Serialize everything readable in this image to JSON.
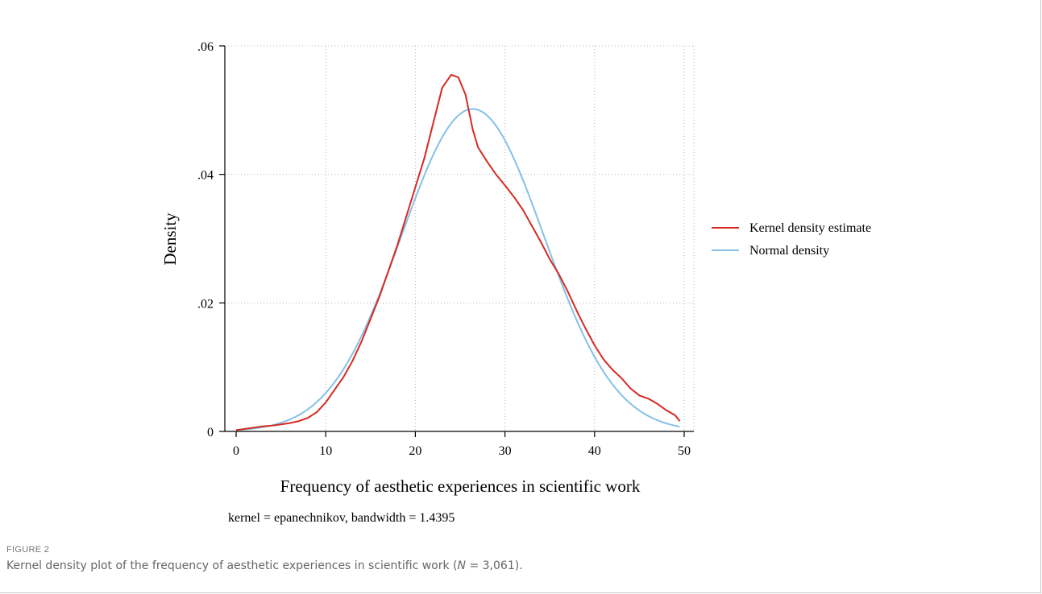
{
  "chart_data": {
    "type": "line",
    "title": "",
    "xlabel": "Frequency of aesthetic experiences in scientific work",
    "ylabel": "Density",
    "xlim": [
      0,
      50
    ],
    "ylim": [
      0,
      0.06
    ],
    "x_ticks": [
      0,
      10,
      20,
      30,
      40,
      50
    ],
    "x_tick_labels": [
      "0",
      "10",
      "20",
      "30",
      "40",
      "50"
    ],
    "y_ticks": [
      0,
      0.02,
      0.04,
      0.06
    ],
    "y_tick_labels": [
      "0",
      ".02",
      ".04",
      ".06"
    ],
    "grid": true,
    "legend_position": "right",
    "note": "kernel = epanechnikov, bandwidth = 1.4395",
    "series": [
      {
        "name": "Kernel density estimate",
        "color": "#d62a22",
        "x": [
          0,
          1,
          2,
          3,
          4,
          5,
          6,
          7,
          8,
          9,
          10,
          11,
          12,
          13,
          14,
          15,
          16,
          17,
          18,
          19,
          20,
          21,
          22,
          23,
          24,
          24.8,
          25.6,
          26.4,
          27,
          28,
          29,
          30,
          31,
          32,
          33,
          34,
          35,
          36,
          37,
          38,
          39,
          40,
          41,
          42,
          43,
          44,
          45,
          46,
          47,
          48,
          49,
          49.5
        ],
        "y": [
          0.0002,
          0.0004,
          0.0006,
          0.0008,
          0.0009,
          0.0011,
          0.0013,
          0.0016,
          0.0021,
          0.003,
          0.0045,
          0.0065,
          0.0085,
          0.011,
          0.014,
          0.0175,
          0.021,
          0.025,
          0.029,
          0.0335,
          0.038,
          0.0425,
          0.048,
          0.0535,
          0.0555,
          0.0551,
          0.0524,
          0.047,
          0.0442,
          0.042,
          0.04,
          0.0383,
          0.0365,
          0.0345,
          0.032,
          0.0295,
          0.0268,
          0.0245,
          0.0218,
          0.0188,
          0.016,
          0.0134,
          0.0112,
          0.0096,
          0.0083,
          0.0067,
          0.0056,
          0.0051,
          0.0043,
          0.0033,
          0.0025,
          0.0016
        ]
      },
      {
        "name": "Normal density",
        "color": "#85c1e5",
        "mean": 26.4,
        "sd": 7.95
      }
    ]
  },
  "caption": {
    "label": "FIGURE 2",
    "text_before": "Kernel density plot of the frequency of aesthetic experiences in scientific work (",
    "n_symbol": "N",
    "text_after": " = 3,061)."
  }
}
